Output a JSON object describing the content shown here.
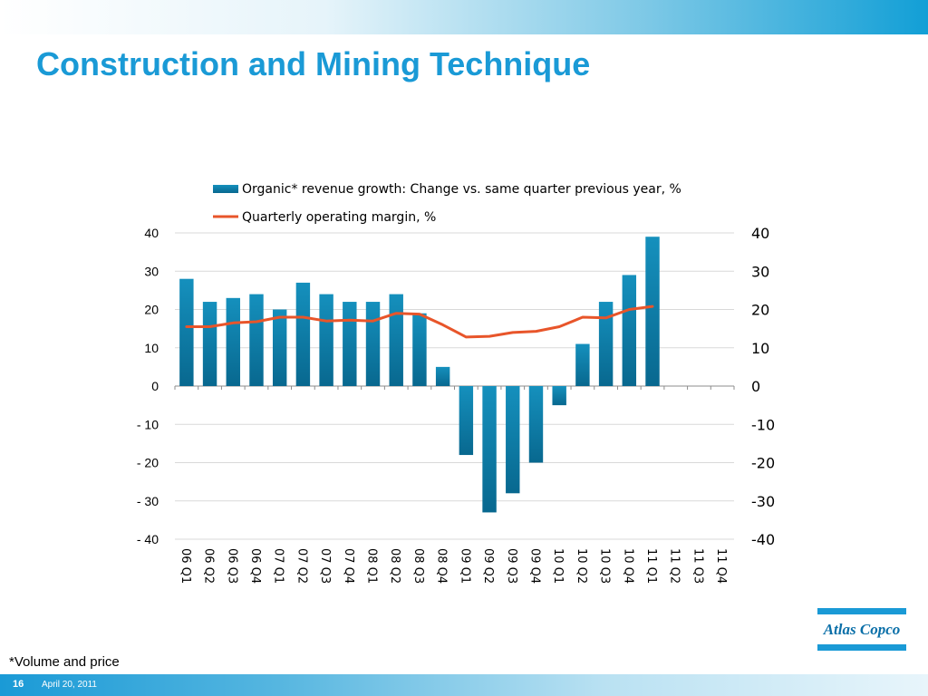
{
  "slide": {
    "title": "Construction and Mining Technique",
    "footnote": "*Volume and price",
    "page_number": "16",
    "date": "April 20, 2011",
    "logo_text": "Atlas Copco"
  },
  "colors": {
    "title": "#1a9ad6",
    "bar": "#0b7ca8",
    "line": "#e8552a",
    "brand": "#1a9ad6"
  },
  "chart_data": {
    "type": "bar",
    "categories": [
      "06 Q1",
      "06 Q2",
      "06 Q3",
      "06 Q4",
      "07 Q1",
      "07 Q2",
      "07 Q3",
      "07 Q4",
      "08 Q1",
      "08 Q2",
      "08 Q3",
      "08 Q4",
      "09 Q1",
      "09 Q2",
      "09 Q3",
      "09 Q4",
      "10 Q1",
      "10 Q2",
      "10 Q3",
      "10 Q4",
      "11 Q1",
      "11 Q2",
      "11 Q3",
      "11 Q4"
    ],
    "series": [
      {
        "name": "Organic* revenue growth: Change vs. same quarter previous year, %",
        "type": "bar",
        "axis": "left",
        "values": [
          28,
          22,
          23,
          24,
          20,
          27,
          24,
          22,
          22,
          24,
          19,
          5,
          -18,
          -33,
          -28,
          -20,
          -5,
          11,
          22,
          29,
          39,
          null,
          null,
          null
        ]
      },
      {
        "name": "Quarterly operating margin, %",
        "type": "line",
        "axis": "right",
        "values": [
          15.5,
          15.5,
          16.5,
          16.8,
          18,
          18,
          17,
          17.2,
          17,
          19,
          18.8,
          16,
          12.8,
          13,
          14,
          14.3,
          15.5,
          18,
          17.8,
          20,
          20.8,
          null,
          null,
          null
        ]
      }
    ],
    "y_left": {
      "ylim": [
        -40,
        40
      ],
      "ticks": [
        "40",
        "30",
        "20",
        "10",
        "0",
        "- 10",
        "- 20",
        "- 30",
        "- 40"
      ]
    },
    "y_right": {
      "ylim": [
        -40,
        40
      ],
      "ticks": [
        "40",
        "30",
        "20",
        "10",
        "0",
        "-10",
        "-20",
        "-30",
        "-40"
      ]
    },
    "tick_values": [
      40,
      30,
      20,
      10,
      0,
      -10,
      -20,
      -30,
      -40
    ],
    "grid": true,
    "legend_position": "top"
  }
}
